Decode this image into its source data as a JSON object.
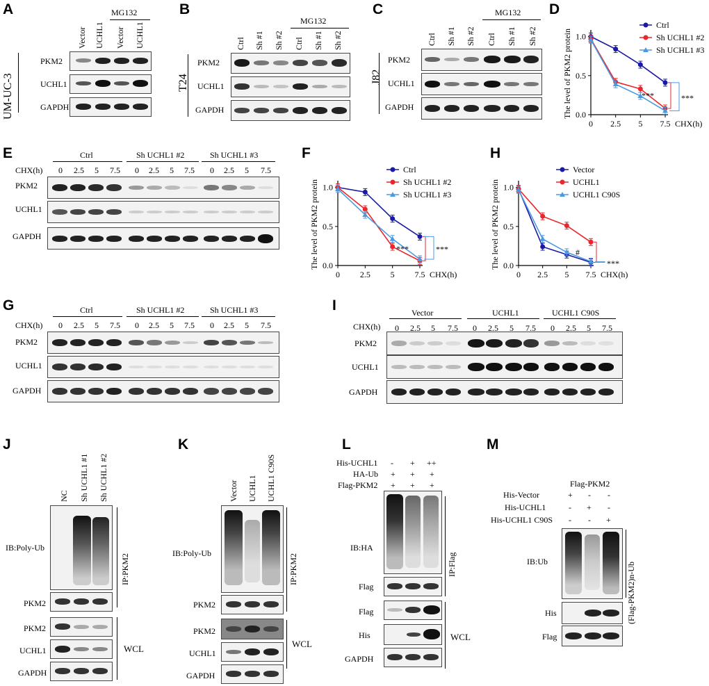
{
  "panels": {
    "A": {
      "letter": "A",
      "cell": "UM-UC-3",
      "lanes": [
        "Vector",
        "UCHL1",
        "Vector",
        "UCHL1"
      ],
      "mg132": "MG132",
      "rows": [
        "PKM2",
        "UCHL1",
        "GAPDH"
      ]
    },
    "B": {
      "letter": "B",
      "cell": "T24",
      "lanes": [
        "Ctrl",
        "Sh #1",
        "Sh #2",
        "Ctrl",
        "Sh #1",
        "Sh #2"
      ],
      "mg132": "MG132",
      "rows": [
        "PKM2",
        "UCHL1",
        "GAPDH"
      ]
    },
    "C": {
      "letter": "C",
      "cell": "J82",
      "lanes": [
        "Ctrl",
        "Sh #1",
        "Sh #2",
        "Ctrl",
        "Sh #1",
        "Sh #2"
      ],
      "mg132": "MG132",
      "rows": [
        "PKM2",
        "UCHL1",
        "GAPDH"
      ]
    },
    "E": {
      "letter": "E",
      "cond_label": "CHX(h)",
      "groups": [
        "Ctrl",
        "Sh UCHL1 #2",
        "Sh UCHL1 #3"
      ],
      "times": [
        "0",
        "2.5",
        "5",
        "7.5"
      ],
      "rows": [
        "PKM2",
        "UCHL1",
        "GAPDH"
      ]
    },
    "G": {
      "letter": "G",
      "cond_label": "CHX(h)",
      "groups": [
        "Ctrl",
        "Sh UCHL1 #2",
        "Sh UCHL1 #3"
      ],
      "times": [
        "0",
        "2.5",
        "5",
        "7.5"
      ],
      "rows": [
        "PKM2",
        "UCHL1",
        "GAPDH"
      ]
    },
    "I": {
      "letter": "I",
      "cond_label": "CHX(h)",
      "groups": [
        "Vector",
        "UCHL1",
        "UCHL1 C90S"
      ],
      "times": [
        "0",
        "2.5",
        "5",
        "7.5"
      ],
      "rows": [
        "PKM2",
        "UCHL1",
        "GAPDH"
      ]
    },
    "J": {
      "letter": "J",
      "lanes": [
        "NC",
        "Sh UCHL1 #1",
        "Sh UCHL1 #2"
      ],
      "ib": "IB:Poly-Ub",
      "ip": "IP:PKM2",
      "wcl": "WCL",
      "rows": [
        "PKM2",
        "PKM2",
        "UCHL1",
        "GAPDH"
      ]
    },
    "K": {
      "letter": "K",
      "lanes": [
        "Vector",
        "UCHL1",
        "UCHL1 C90S"
      ],
      "ib": "IB:Poly-Ub",
      "ip": "IP:PKM2",
      "wcl": "WCL",
      "rows": [
        "PKM2",
        "PKM2",
        "UCHL1",
        "GAPDH"
      ]
    },
    "L": {
      "letter": "L",
      "conds": [
        {
          "name": "His-UCHL1",
          "v": [
            "-",
            "+",
            "++"
          ]
        },
        {
          "name": "HA-Ub",
          "v": [
            "+",
            "+",
            "+"
          ]
        },
        {
          "name": "Flag-PKM2",
          "v": [
            "+",
            "+",
            "+"
          ]
        }
      ],
      "ib": "IB:HA",
      "ip": "IP:Flag",
      "wcl": "WCL",
      "rows": [
        "Flag",
        "Flag",
        "His",
        "GAPDH"
      ]
    },
    "M": {
      "letter": "M",
      "title": "Flag-PKM2",
      "conds": [
        {
          "name": "His-Vector",
          "v": [
            "+",
            "-",
            "-"
          ]
        },
        {
          "name": "His-UCHL1",
          "v": [
            "-",
            "+",
            "-"
          ]
        },
        {
          "name": "His-UCHL1 C90S",
          "v": [
            "-",
            "-",
            "+"
          ]
        }
      ],
      "ib": "IB:Ub",
      "side": "(Flag-PKM2)n-Ub",
      "rows": [
        "His",
        "Flag"
      ]
    }
  },
  "chart_data": [
    {
      "panel": "D",
      "type": "line",
      "ylabel": "The level of  PKM2 protein",
      "xlabel": "CHX(h)",
      "x": [
        0,
        2.5,
        5,
        7.5
      ],
      "xticks": [
        "0",
        "2.5",
        "5",
        "7.5"
      ],
      "ylim": [
        0,
        1.05
      ],
      "yticks": [
        "0.0",
        "0.5",
        "1.0"
      ],
      "legend": "top-right",
      "series": [
        {
          "name": "Ctrl",
          "color": "#1a1aa6",
          "values": [
            1.0,
            0.84,
            0.64,
            0.41
          ]
        },
        {
          "name": "Sh UCHL1 #2",
          "color": "#e8262b",
          "values": [
            0.97,
            0.42,
            0.33,
            0.08
          ]
        },
        {
          "name": "Sh UCHL1 #3",
          "color": "#4a9ae0",
          "values": [
            0.96,
            0.39,
            0.24,
            0.05
          ]
        }
      ],
      "annotations": [
        "***",
        "***"
      ]
    },
    {
      "panel": "F",
      "type": "line",
      "ylabel": "The level of  PKM2 protein",
      "xlabel": "CHX(h)",
      "x": [
        0,
        2.5,
        5,
        7.5
      ],
      "xticks": [
        "0",
        "2.5",
        "5",
        "7.5"
      ],
      "ylim": [
        0,
        1.05
      ],
      "yticks": [
        "0.0",
        "0.5",
        "1.0"
      ],
      "legend": "top-right",
      "series": [
        {
          "name": "Ctrl",
          "color": "#1a1aa6",
          "values": [
            1.0,
            0.94,
            0.6,
            0.37
          ]
        },
        {
          "name": "Sh UCHL1 #2",
          "color": "#e8262b",
          "values": [
            1.0,
            0.72,
            0.24,
            0.06
          ]
        },
        {
          "name": "Sh UCHL1 #3",
          "color": "#4a9ae0",
          "values": [
            0.98,
            0.65,
            0.34,
            0.08
          ]
        }
      ],
      "annotations": [
        "***",
        "***"
      ]
    },
    {
      "panel": "H",
      "type": "line",
      "ylabel": "The level of  PKM2 protein",
      "xlabel": "CHX(h)",
      "x": [
        0,
        2.5,
        5,
        7.5
      ],
      "xticks": [
        "0",
        "2.5",
        "5",
        "7.5"
      ],
      "ylim": [
        0,
        1.05
      ],
      "yticks": [
        "0.0",
        "0.5",
        "1.0"
      ],
      "legend": "top-right",
      "series": [
        {
          "name": "Vector",
          "color": "#1a1aa6",
          "values": [
            0.98,
            0.24,
            0.14,
            0.04
          ]
        },
        {
          "name": "UCHL1",
          "color": "#e8262b",
          "values": [
            0.98,
            0.63,
            0.51,
            0.3
          ]
        },
        {
          "name": "UCHL1 C90S",
          "color": "#4a9ae0",
          "values": [
            0.97,
            0.34,
            0.17,
            0.05
          ]
        }
      ],
      "annotations": [
        "#",
        "***"
      ]
    }
  ]
}
